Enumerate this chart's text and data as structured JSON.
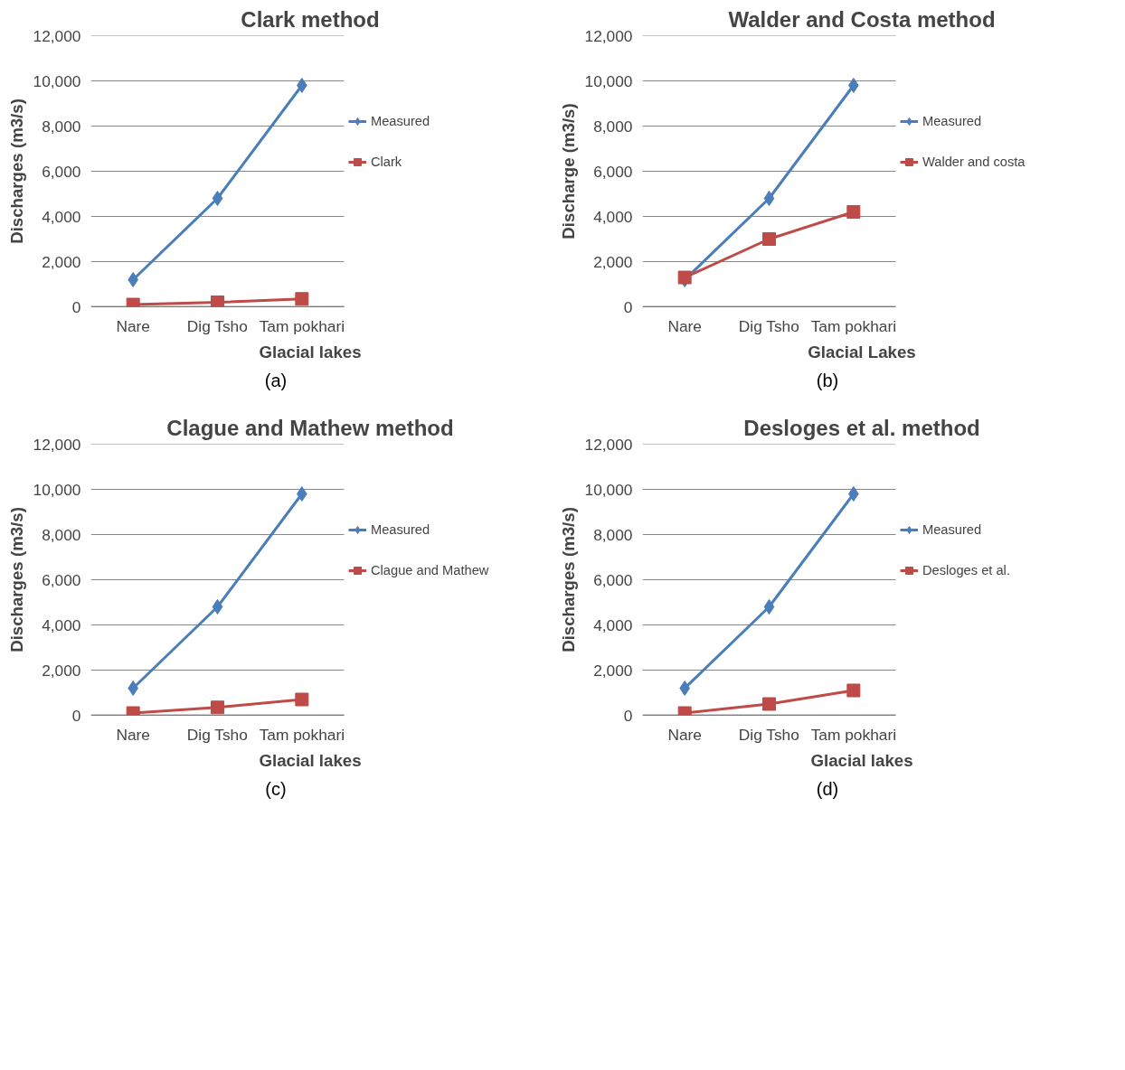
{
  "chart_data": [
    {
      "type": "line",
      "title": "Clark method",
      "xlabel": "Glacial lakes",
      "ylabel": "Discharges (m3/s)",
      "categories": [
        "Nare",
        "Dig Tsho",
        "Tam pokhari"
      ],
      "series": [
        {
          "name": "Measured",
          "color": "#4a7ebb",
          "marker": "diamond",
          "values": [
            1200,
            4800,
            9800
          ]
        },
        {
          "name": "Clark",
          "color": "#be4b48",
          "marker": "square",
          "values": [
            100,
            200,
            350
          ]
        }
      ],
      "ylim": [
        0,
        12000
      ],
      "yticks": [
        {
          "value": 0,
          "label": "0"
        },
        {
          "value": 2000,
          "label": "2,000"
        },
        {
          "value": 4000,
          "label": "4,000"
        },
        {
          "value": 6000,
          "label": "6,000"
        },
        {
          "value": 8000,
          "label": "8,000"
        },
        {
          "value": 10000,
          "label": "10,000"
        },
        {
          "value": 12000,
          "label": "12,000"
        }
      ],
      "grid": "y",
      "legend": "right",
      "annotations": [
        "(a)"
      ]
    },
    {
      "type": "line",
      "title": "Walder and Costa method",
      "xlabel": "Glacial Lakes",
      "ylabel": "Discharge (m3/s)",
      "categories": [
        "Nare",
        "Dig Tsho",
        "Tam pokhari"
      ],
      "series": [
        {
          "name": "Measured",
          "color": "#4a7ebb",
          "marker": "diamond",
          "values": [
            1200,
            4800,
            9800
          ]
        },
        {
          "name": "Walder and costa",
          "color": "#be4b48",
          "marker": "square",
          "values": [
            1300,
            3000,
            4200
          ]
        }
      ],
      "ylim": [
        0,
        12000
      ],
      "yticks": [
        {
          "value": 0,
          "label": "0"
        },
        {
          "value": 2000,
          "label": "2,000"
        },
        {
          "value": 4000,
          "label": "4,000"
        },
        {
          "value": 6000,
          "label": "6,000"
        },
        {
          "value": 8000,
          "label": "8,000"
        },
        {
          "value": 10000,
          "label": "10,000"
        },
        {
          "value": 12000,
          "label": "12,000"
        }
      ],
      "grid": "y",
      "legend": "right",
      "annotations": [
        "(b)"
      ]
    },
    {
      "type": "line",
      "title": "Clague and Mathew method",
      "xlabel": "Glacial lakes",
      "ylabel": "Discharges (m3/s)",
      "categories": [
        "Nare",
        "Dig Tsho",
        "Tam pokhari"
      ],
      "series": [
        {
          "name": "Measured",
          "color": "#4a7ebb",
          "marker": "diamond",
          "values": [
            1200,
            4800,
            9800
          ]
        },
        {
          "name": "Clague and Mathew",
          "color": "#be4b48",
          "marker": "square",
          "values": [
            100,
            350,
            700
          ]
        }
      ],
      "ylim": [
        0,
        12000
      ],
      "yticks": [
        {
          "value": 0,
          "label": "0"
        },
        {
          "value": 2000,
          "label": "2,000"
        },
        {
          "value": 4000,
          "label": "4,000"
        },
        {
          "value": 6000,
          "label": "6,000"
        },
        {
          "value": 8000,
          "label": "8,000"
        },
        {
          "value": 10000,
          "label": "10,000"
        },
        {
          "value": 12000,
          "label": "12,000"
        }
      ],
      "grid": "y",
      "legend": "right",
      "annotations": [
        "(c)"
      ]
    },
    {
      "type": "line",
      "title": "Desloges et al. method",
      "xlabel": "Glacial lakes",
      "ylabel": "Discharges (m3/s)",
      "categories": [
        "Nare",
        "Dig Tsho",
        "Tam pokhari"
      ],
      "series": [
        {
          "name": "Measured",
          "color": "#4a7ebb",
          "marker": "diamond",
          "values": [
            1200,
            4800,
            9800
          ]
        },
        {
          "name": "Desloges et al.",
          "color": "#be4b48",
          "marker": "square",
          "values": [
            100,
            500,
            1100
          ]
        }
      ],
      "ylim": [
        0,
        12000
      ],
      "yticks": [
        {
          "value": 0,
          "label": "0"
        },
        {
          "value": 2000,
          "label": "2,000"
        },
        {
          "value": 4000,
          "label": "4,000"
        },
        {
          "value": 6000,
          "label": "6,000"
        },
        {
          "value": 8000,
          "label": "8,000"
        },
        {
          "value": 10000,
          "label": "10,000"
        },
        {
          "value": 12000,
          "label": "12,000"
        }
      ],
      "grid": "y",
      "legend": "right",
      "annotations": [
        "(d)"
      ]
    }
  ]
}
